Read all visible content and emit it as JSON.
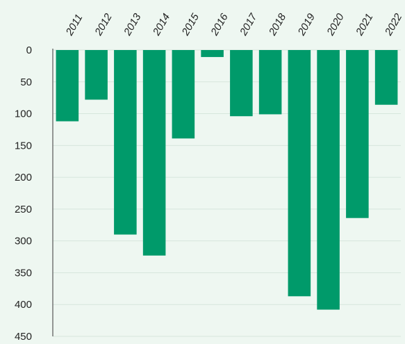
{
  "chart_data": {
    "type": "bar",
    "orientation": "vertical-inverted",
    "categories": [
      "2011",
      "2012",
      "2013",
      "2014",
      "2015",
      "2016",
      "2017",
      "2018",
      "2019",
      "2020",
      "2021",
      "2022"
    ],
    "values": [
      112,
      78,
      290,
      323,
      139,
      11,
      104,
      101,
      387,
      408,
      264,
      86
    ],
    "y_ticks": [
      "0",
      "50",
      "100",
      "150",
      "200",
      "250",
      "300",
      "350",
      "400",
      "450"
    ],
    "ylim": [
      0,
      450
    ],
    "y_inverted": true,
    "x_axis_position": "top",
    "category_label_rotation": "-60deg",
    "grid": true,
    "legend": "none",
    "colors": {
      "bar": "#009a6a",
      "background": "#eef7f1",
      "grid": "#d6e6dc",
      "axis": "#555555",
      "text": "#222222"
    }
  }
}
